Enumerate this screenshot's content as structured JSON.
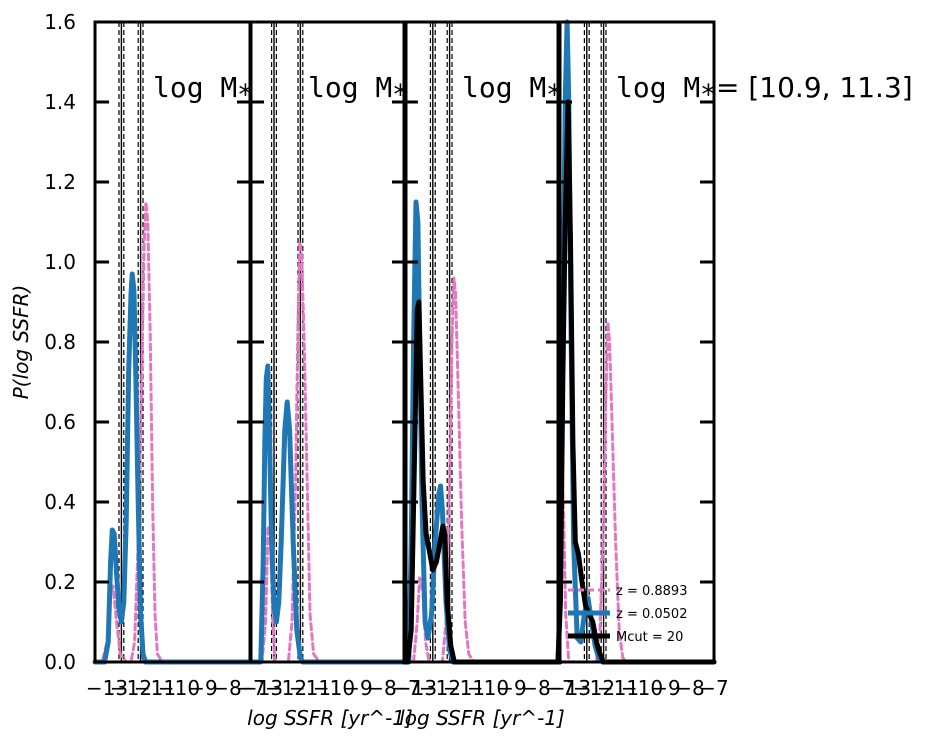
{
  "chart_data": {
    "type": "line",
    "ylabel": "P(log SSFR)",
    "xlabels": [
      "log SSFR [yr^-1]",
      "log SSFR [yr^-1]"
    ],
    "ylim": [
      0.0,
      1.6
    ],
    "yticks": [
      "0.0",
      "0.2",
      "0.4",
      "0.6",
      "0.8",
      "1.0",
      "1.2",
      "1.4",
      "1.6"
    ],
    "xlim": [
      -13.5,
      -7.0
    ],
    "xtick_labels": [
      "−13",
      "−12",
      "−11",
      "−10",
      "−9",
      "−8",
      "−7"
    ],
    "colors": {
      "blue": "#1f77b4",
      "pink": "#e377c2",
      "black": "#000000",
      "guide": "#000000"
    },
    "legend": {
      "placement": "lower-right of last panel",
      "entries": [
        "z = 0.8893",
        "z = 0.0502",
        "Mcut = 20"
      ]
    },
    "panels": [
      {
        "label": "log M",
        "label_sub": "*",
        "vlines_solid": [
          -12.4,
          -11.6
        ],
        "vlines_dashed": [
          -12.5,
          -12.3,
          -11.7,
          -11.5
        ],
        "series": [
          {
            "color": "blue",
            "style": "solid",
            "points": [
              [
                -13.5,
                0.0
              ],
              [
                -13.1,
                0.0
              ],
              [
                -12.95,
                0.05
              ],
              [
                -12.85,
                0.25
              ],
              [
                -12.78,
                0.33
              ],
              [
                -12.7,
                0.32
              ],
              [
                -12.6,
                0.22
              ],
              [
                -12.5,
                0.13
              ],
              [
                -12.4,
                0.1
              ],
              [
                -12.3,
                0.15
              ],
              [
                -12.2,
                0.35
              ],
              [
                -12.1,
                0.72
              ],
              [
                -12.0,
                0.92
              ],
              [
                -11.95,
                0.97
              ],
              [
                -11.88,
                0.93
              ],
              [
                -11.8,
                0.72
              ],
              [
                -11.7,
                0.4
              ],
              [
                -11.6,
                0.12
              ],
              [
                -11.5,
                0.02
              ],
              [
                -11.4,
                0.0
              ],
              [
                -7.0,
                0.0
              ]
            ]
          },
          {
            "color": "pink",
            "style": "dashed",
            "points": [
              [
                -13.5,
                0.0
              ],
              [
                -13.2,
                0.0
              ],
              [
                -13.0,
                0.05
              ],
              [
                -12.85,
                0.17
              ],
              [
                -12.75,
                0.19
              ],
              [
                -12.6,
                0.1
              ],
              [
                -12.45,
                0.02
              ],
              [
                -12.2,
                0.0
              ],
              [
                -12.0,
                0.0
              ],
              [
                -11.85,
                0.05
              ],
              [
                -11.7,
                0.3
              ],
              [
                -11.55,
                0.72
              ],
              [
                -11.45,
                1.05
              ],
              [
                -11.38,
                1.15
              ],
              [
                -11.3,
                1.1
              ],
              [
                -11.2,
                0.82
              ],
              [
                -11.1,
                0.4
              ],
              [
                -11.0,
                0.12
              ],
              [
                -10.9,
                0.02
              ],
              [
                -10.7,
                0.0
              ],
              [
                -7.0,
                0.0
              ]
            ]
          }
        ]
      },
      {
        "label": "log M",
        "label_sub": "*",
        "vlines_solid": [
          -12.5,
          -11.4
        ],
        "vlines_dashed": [
          -12.6,
          -12.4,
          -11.5,
          -11.3
        ],
        "series": [
          {
            "color": "blue",
            "style": "solid",
            "points": [
              [
                -13.5,
                0.0
              ],
              [
                -13.05,
                0.0
              ],
              [
                -12.95,
                0.25
              ],
              [
                -12.88,
                0.56
              ],
              [
                -12.82,
                0.71
              ],
              [
                -12.76,
                0.74
              ],
              [
                -12.7,
                0.6
              ],
              [
                -12.6,
                0.3
              ],
              [
                -12.5,
                0.14
              ],
              [
                -12.4,
                0.1
              ],
              [
                -12.3,
                0.15
              ],
              [
                -12.2,
                0.3
              ],
              [
                -12.05,
                0.58
              ],
              [
                -11.95,
                0.65
              ],
              [
                -11.85,
                0.58
              ],
              [
                -11.7,
                0.3
              ],
              [
                -11.55,
                0.08
              ],
              [
                -11.4,
                0.01
              ],
              [
                -11.3,
                0.0
              ],
              [
                -7.0,
                0.0
              ]
            ]
          },
          {
            "color": "pink",
            "style": "dashed",
            "points": [
              [
                -13.5,
                0.0
              ],
              [
                -13.0,
                0.0
              ],
              [
                -12.85,
                0.1
              ],
              [
                -12.75,
                0.34
              ],
              [
                -12.65,
                0.32
              ],
              [
                -12.55,
                0.1
              ],
              [
                -12.45,
                0.0
              ],
              [
                -11.9,
                0.0
              ],
              [
                -11.75,
                0.1
              ],
              [
                -11.6,
                0.45
              ],
              [
                -11.5,
                0.85
              ],
              [
                -11.42,
                1.05
              ],
              [
                -11.35,
                1.02
              ],
              [
                -11.25,
                0.82
              ],
              [
                -11.1,
                0.4
              ],
              [
                -11.0,
                0.12
              ],
              [
                -10.85,
                0.02
              ],
              [
                -10.6,
                0.0
              ],
              [
                -7.0,
                0.0
              ]
            ]
          }
        ]
      },
      {
        "label": "log M",
        "label_sub": "*",
        "vlines_solid": [
          -12.3,
          -11.6
        ],
        "vlines_dashed": [
          -12.4,
          -12.2,
          -11.7,
          -11.5
        ],
        "series": [
          {
            "color": "blue",
            "style": "solid",
            "points": [
              [
                -13.5,
                0.0
              ],
              [
                -13.3,
                0.0
              ],
              [
                -13.2,
                0.3
              ],
              [
                -13.1,
                0.8
              ],
              [
                -13.0,
                1.15
              ],
              [
                -12.92,
                1.1
              ],
              [
                -12.85,
                0.8
              ],
              [
                -12.75,
                0.4
              ],
              [
                -12.62,
                0.1
              ],
              [
                -12.5,
                0.06
              ],
              [
                -12.35,
                0.12
              ],
              [
                -12.2,
                0.3
              ],
              [
                -12.05,
                0.42
              ],
              [
                -11.98,
                0.44
              ],
              [
                -11.9,
                0.38
              ],
              [
                -11.75,
                0.15
              ],
              [
                -11.6,
                0.03
              ],
              [
                -11.45,
                0.0
              ],
              [
                -7.0,
                0.0
              ]
            ]
          },
          {
            "color": "black",
            "style": "solid",
            "points": [
              [
                -13.5,
                0.0
              ],
              [
                -13.35,
                0.0
              ],
              [
                -13.2,
                0.08
              ],
              [
                -13.05,
                0.55
              ],
              [
                -12.95,
                0.88
              ],
              [
                -12.88,
                0.9
              ],
              [
                -12.8,
                0.7
              ],
              [
                -12.7,
                0.45
              ],
              [
                -12.58,
                0.32
              ],
              [
                -12.45,
                0.28
              ],
              [
                -12.3,
                0.23
              ],
              [
                -12.15,
                0.25
              ],
              [
                -12.0,
                0.3
              ],
              [
                -11.88,
                0.34
              ],
              [
                -11.8,
                0.32
              ],
              [
                -11.7,
                0.15
              ],
              [
                -11.55,
                0.04
              ],
              [
                -11.4,
                0.0
              ],
              [
                -7.0,
                0.0
              ]
            ]
          },
          {
            "color": "pink",
            "style": "dashed",
            "points": [
              [
                -13.5,
                0.0
              ],
              [
                -13.1,
                0.0
              ],
              [
                -12.95,
                0.1
              ],
              [
                -12.85,
                0.21
              ],
              [
                -12.72,
                0.18
              ],
              [
                -12.6,
                0.05
              ],
              [
                -12.45,
                0.0
              ],
              [
                -11.9,
                0.0
              ],
              [
                -11.75,
                0.1
              ],
              [
                -11.6,
                0.45
              ],
              [
                -11.5,
                0.8
              ],
              [
                -11.42,
                0.96
              ],
              [
                -11.35,
                0.92
              ],
              [
                -11.25,
                0.7
              ],
              [
                -11.1,
                0.35
              ],
              [
                -10.95,
                0.1
              ],
              [
                -10.8,
                0.02
              ],
              [
                -10.6,
                0.0
              ],
              [
                -7.0,
                0.0
              ]
            ]
          }
        ]
      },
      {
        "label": "log M",
        "label_sub": "*",
        "range_text": "= [10.9, 11.3]",
        "vlines_solid": [
          -12.3,
          -11.6
        ],
        "vlines_dashed": [
          -12.4,
          -12.2,
          -11.7,
          -11.5
        ],
        "series": [
          {
            "color": "blue",
            "style": "solid",
            "points": [
              [
                -13.5,
                0.0
              ],
              [
                -13.4,
                0.2
              ],
              [
                -13.3,
                0.8
              ],
              [
                -13.2,
                1.4
              ],
              [
                -13.12,
                1.6
              ],
              [
                -13.05,
                1.4
              ],
              [
                -12.95,
                0.8
              ],
              [
                -12.85,
                0.3
              ],
              [
                -12.7,
                0.06
              ],
              [
                -12.55,
                0.05
              ],
              [
                -12.4,
                0.12
              ],
              [
                -12.25,
                0.16
              ],
              [
                -12.1,
                0.1
              ],
              [
                -11.95,
                0.04
              ],
              [
                -11.8,
                0.01
              ],
              [
                -11.65,
                0.0
              ],
              [
                -7.0,
                0.0
              ]
            ]
          },
          {
            "color": "black",
            "style": "solid",
            "points": [
              [
                -13.5,
                0.0
              ],
              [
                -13.4,
                0.15
              ],
              [
                -13.3,
                0.7
              ],
              [
                -13.2,
                1.1
              ],
              [
                -13.08,
                1.4
              ],
              [
                -12.98,
                1.05
              ],
              [
                -12.88,
                0.55
              ],
              [
                -12.78,
                0.3
              ],
              [
                -12.65,
                0.27
              ],
              [
                -12.5,
                0.2
              ],
              [
                -12.35,
                0.14
              ],
              [
                -12.2,
                0.12
              ],
              [
                -12.05,
                0.1
              ],
              [
                -11.9,
                0.05
              ],
              [
                -11.75,
                0.02
              ],
              [
                -11.6,
                0.0
              ],
              [
                -7.0,
                0.0
              ]
            ]
          },
          {
            "color": "pink",
            "style": "dashed",
            "points": [
              [
                -13.5,
                0.0
              ],
              [
                -13.42,
                0.25
              ],
              [
                -13.35,
                0.5
              ],
              [
                -13.28,
                0.4
              ],
              [
                -13.18,
                0.12
              ],
              [
                -13.05,
                0.0
              ],
              [
                -11.9,
                0.0
              ],
              [
                -11.75,
                0.08
              ],
              [
                -11.6,
                0.35
              ],
              [
                -11.5,
                0.68
              ],
              [
                -11.42,
                0.85
              ],
              [
                -11.35,
                0.8
              ],
              [
                -11.25,
                0.6
              ],
              [
                -11.1,
                0.3
              ],
              [
                -10.95,
                0.08
              ],
              [
                -10.8,
                0.01
              ],
              [
                -10.6,
                0.0
              ],
              [
                -7.0,
                0.0
              ]
            ]
          }
        ]
      }
    ]
  }
}
